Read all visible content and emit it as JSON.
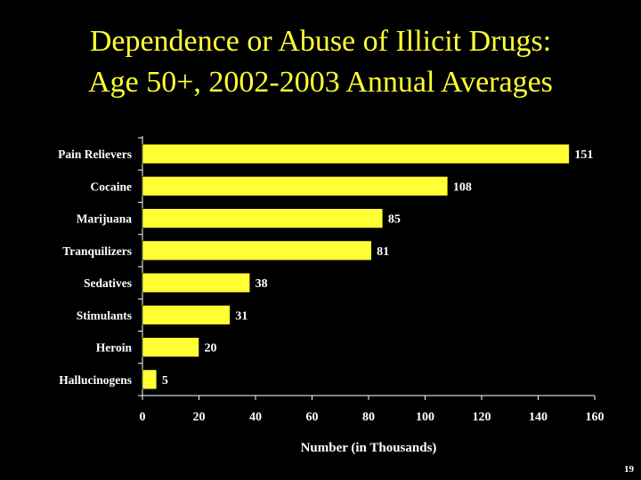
{
  "slide": {
    "title_line1": "Dependence or Abuse of Illicit Drugs:",
    "title_line2": "Age 50+, 2002-2003 Annual Averages",
    "page_number": "19"
  },
  "colors": {
    "background": "#000000",
    "title": "#ffff33",
    "bar": "#ffff33",
    "text": "#ffffff"
  },
  "chart_data": {
    "type": "bar",
    "orientation": "horizontal",
    "categories": [
      "Pain Relievers",
      "Cocaine",
      "Marijuana",
      "Tranquilizers",
      "Sedatives",
      "Stimulants",
      "Heroin",
      "Hallucinogens"
    ],
    "values": [
      151,
      108,
      85,
      81,
      38,
      31,
      20,
      5
    ],
    "data_labels": [
      "151",
      "108",
      "85",
      "81",
      "38",
      "31",
      "20",
      "5"
    ],
    "xlabel": "Number (in Thousands)",
    "ylabel": "",
    "xlim": [
      0,
      160
    ],
    "xticks": [
      0,
      20,
      40,
      60,
      80,
      100,
      120,
      140,
      160
    ],
    "grid": false,
    "legend": "none"
  }
}
